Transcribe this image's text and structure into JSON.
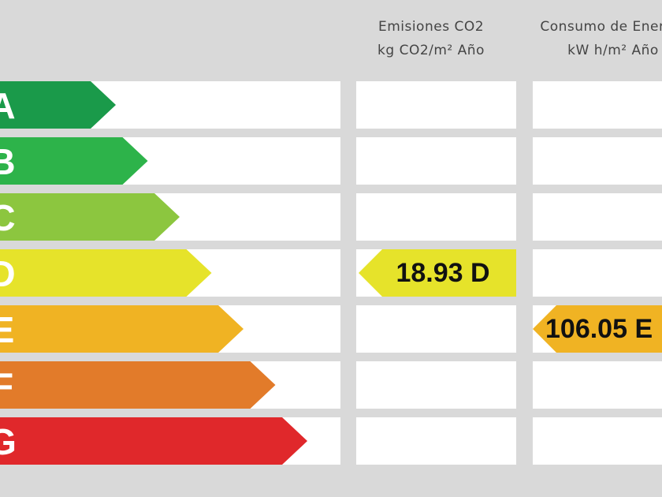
{
  "header": {
    "emissions": {
      "title": "Emisiones CO2",
      "unit": "kg CO2/m² Año"
    },
    "consumption": {
      "title": "Consumo de Energía",
      "unit": "kW h/m² Año"
    }
  },
  "ratings": [
    {
      "label": "A",
      "color": "#1a9a4a"
    },
    {
      "label": "B",
      "color": "#2db34a"
    },
    {
      "label": "C",
      "color": "#8cc63f"
    },
    {
      "label": "D",
      "color": "#e6e32a"
    },
    {
      "label": "E",
      "color": "#f0b323"
    },
    {
      "label": "F",
      "color": "#e27b2a"
    },
    {
      "label": "G",
      "color": "#e0282b"
    }
  ],
  "emissions_value": {
    "text": "18.93 D",
    "color": "#e6e32a"
  },
  "consumption_value": {
    "text": "106.05 E",
    "color": "#f0b323"
  }
}
